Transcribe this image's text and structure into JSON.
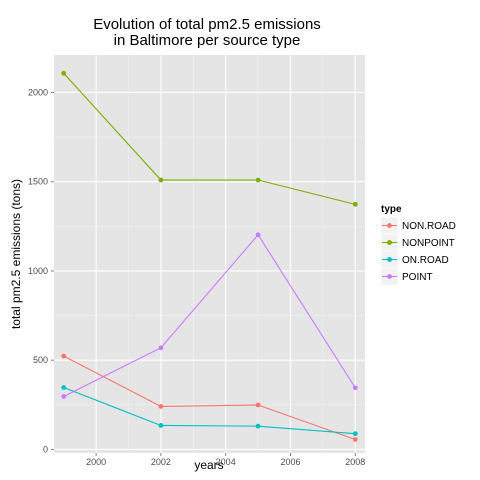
{
  "chart_data": {
    "type": "line",
    "title": [
      "Evolution of total pm2.5 emissions",
      "in Baltimore per source type"
    ],
    "xlabel": "years",
    "ylabel": "total pm2.5 emissions (tons)",
    "x": [
      1999,
      2002,
      2005,
      2008
    ],
    "xlim": [
      1998.7,
      2008.3
    ],
    "ylim": [
      -20,
      2210
    ],
    "x_ticks": [
      2000,
      2002,
      2004,
      2006,
      2008
    ],
    "y_ticks": [
      0,
      500,
      1000,
      1500,
      2000
    ],
    "grid": true,
    "legend": {
      "title": "type",
      "position": "right"
    },
    "series": [
      {
        "name": "NON.ROAD",
        "color": "#F8766D",
        "values": [
          522.94,
          240.85,
          248.93,
          55.82
        ]
      },
      {
        "name": "NONPOINT",
        "color": "#7CAE00",
        "values": [
          2107.63,
          1509.5,
          1509.5,
          1373.21
        ]
      },
      {
        "name": "ON.ROAD",
        "color": "#00BFC4",
        "values": [
          346.82,
          134.31,
          130.43,
          88.28
        ]
      },
      {
        "name": "POINT",
        "color": "#C77CFF",
        "values": [
          296.8,
          569.26,
          1202.49,
          344.98
        ]
      }
    ]
  }
}
